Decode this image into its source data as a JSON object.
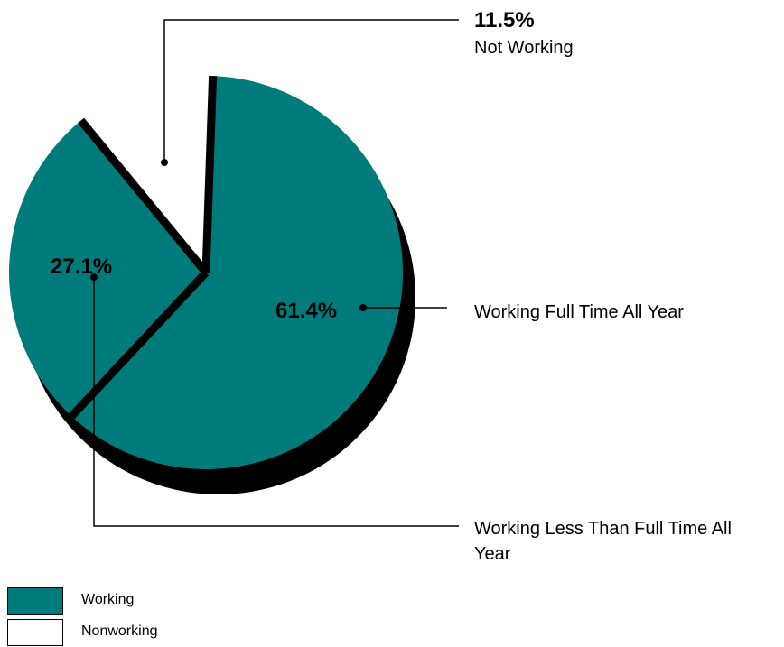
{
  "chart_data": {
    "type": "pie",
    "slices": [
      {
        "label": "Working Full Time All Year",
        "value": 61.4,
        "value_label": "61.4%",
        "group": "Working",
        "color": "#007b7b"
      },
      {
        "label": "Working Less Than Full Time All Year",
        "value": 27.1,
        "value_label": "27.1%",
        "group": "Working",
        "color": "#007b7b"
      },
      {
        "label": "Not Working",
        "value": 11.5,
        "value_label": "11.5%",
        "group": "Nonworking",
        "color": "#ffffff"
      }
    ],
    "legend": [
      {
        "label": "Working",
        "color": "#007b7b"
      },
      {
        "label": "Nonworking",
        "color": "#ffffff"
      }
    ],
    "legend_position": "bottom-left",
    "shadow": true
  }
}
